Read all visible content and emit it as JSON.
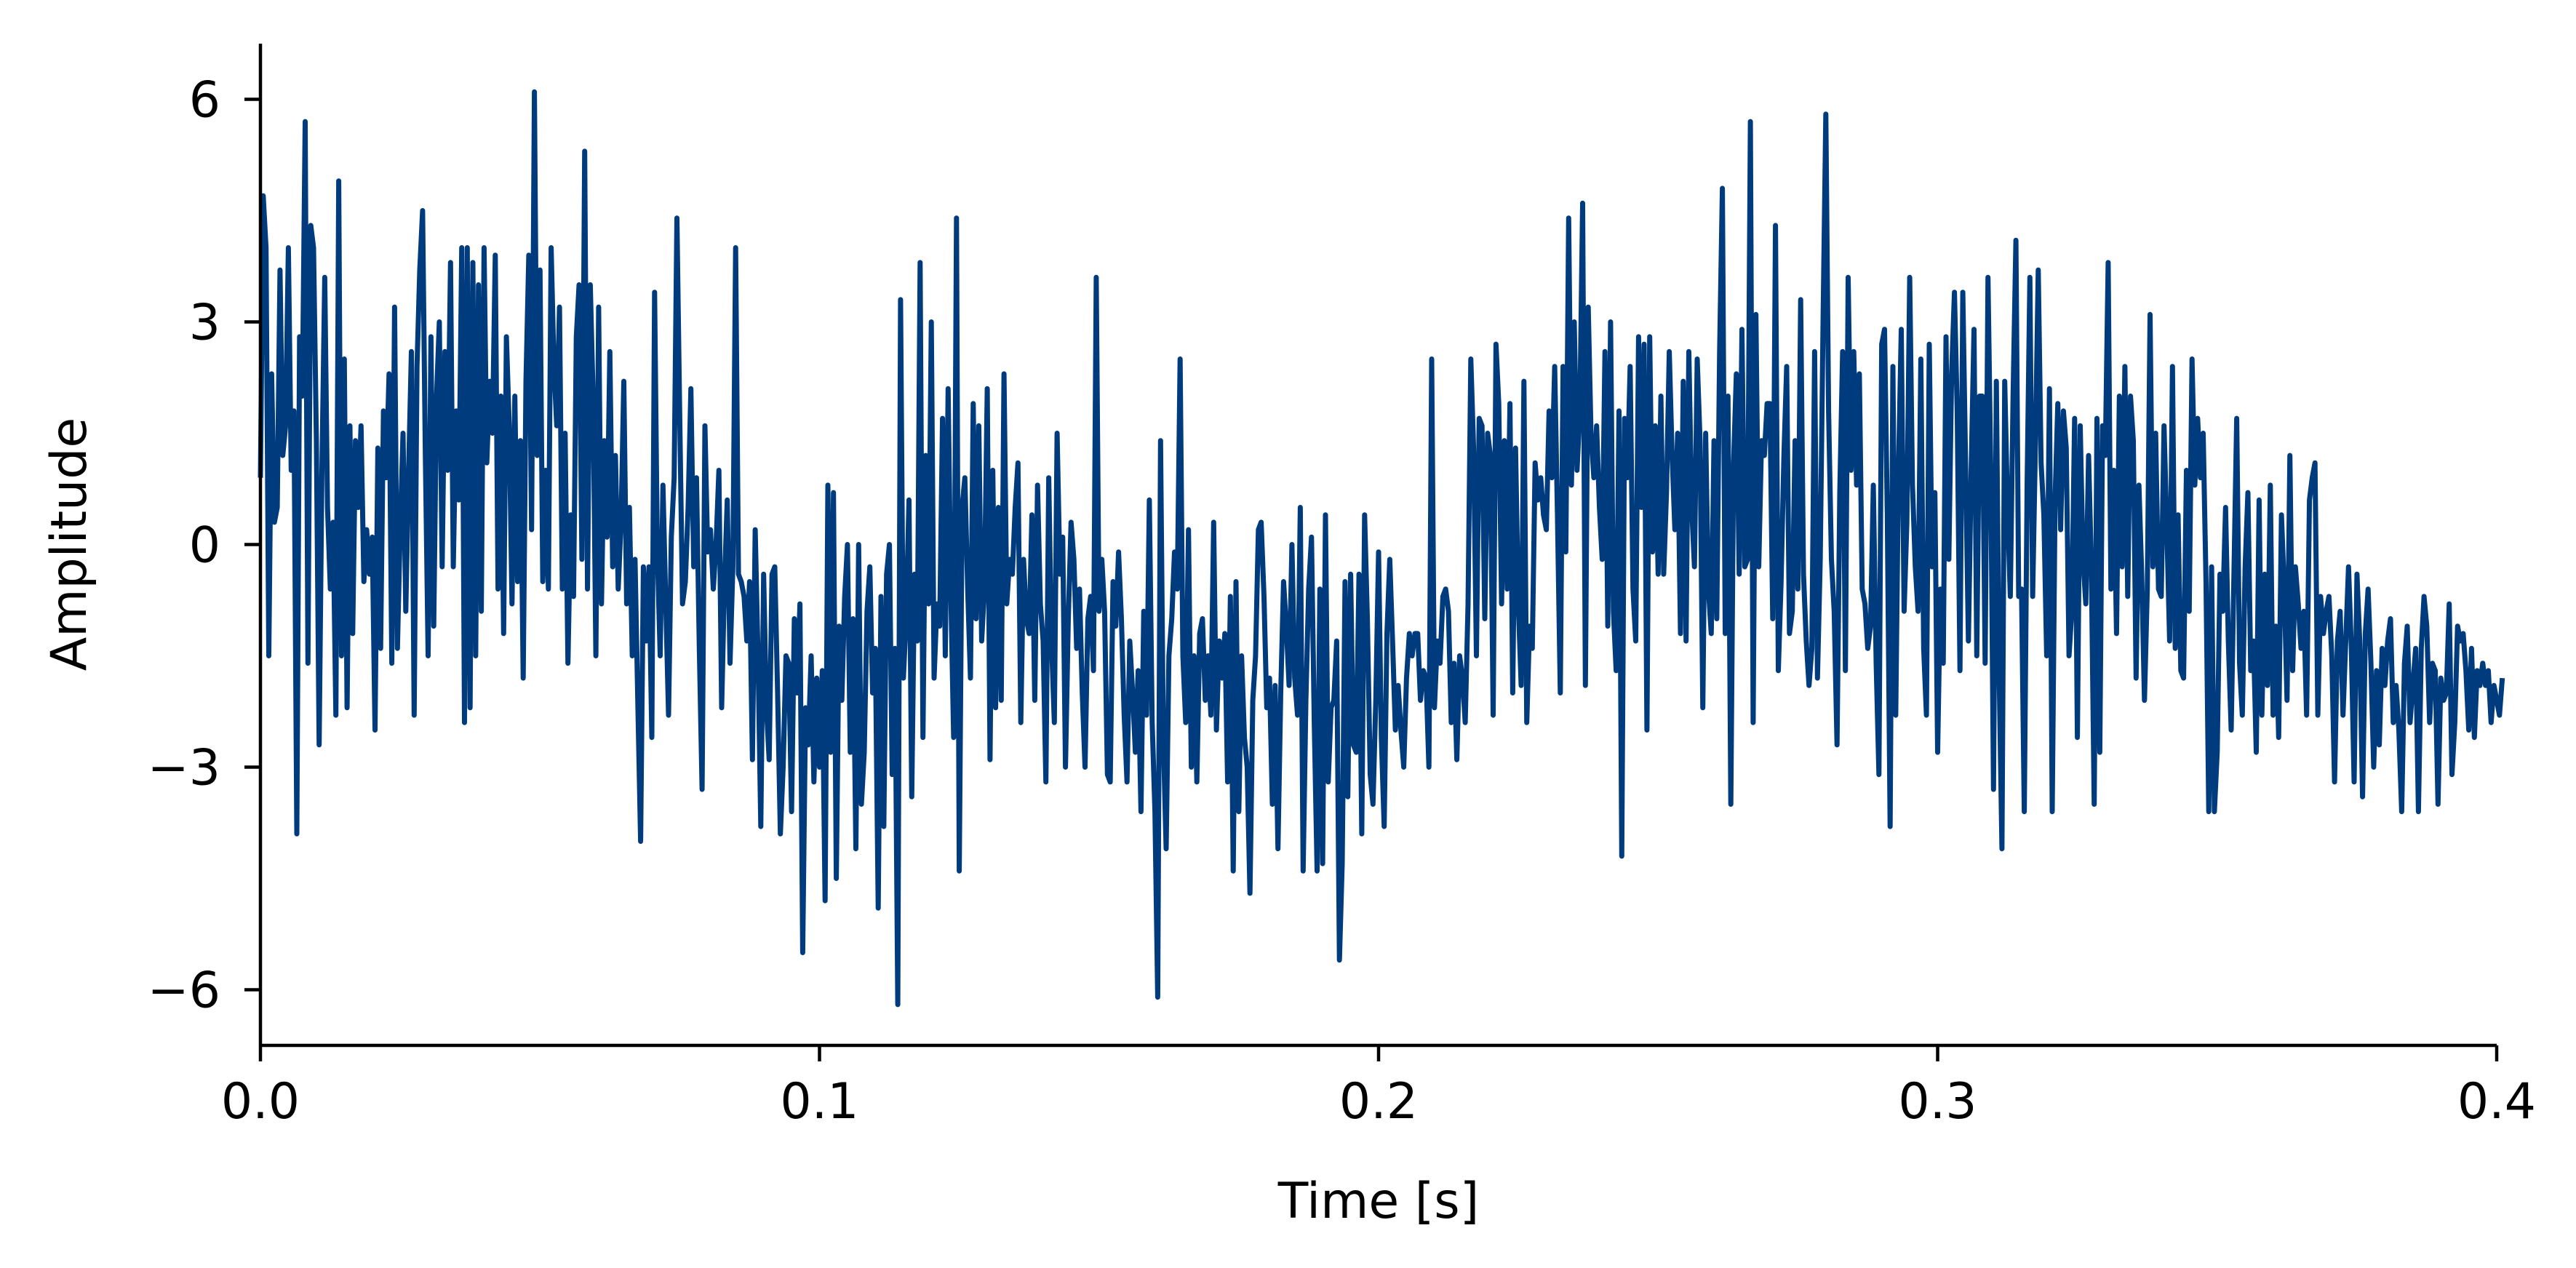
{
  "chart_data": {
    "type": "line",
    "title": "",
    "xlabel": "Time [s]",
    "ylabel": "Amplitude",
    "xlim": [
      0,
      0.4
    ],
    "ylim": [
      -6.75,
      6.75
    ],
    "xticks": [
      0.0,
      0.1,
      0.2,
      0.3,
      0.4
    ],
    "xtick_labels": [
      "0.0",
      "0.1",
      "0.2",
      "0.3",
      "0.4"
    ],
    "yticks": [
      -6,
      -3,
      0,
      3,
      6
    ],
    "ytick_labels": [
      "−6",
      "−3",
      "0",
      "3",
      "6"
    ],
    "grid": false,
    "legend": "none",
    "colors": {
      "series": "#003c7d",
      "axes": "#000000"
    },
    "sampling": {
      "n": 800,
      "dt": 0.0005
    },
    "series": [
      {
        "color": "#003c7d",
        "x_start": 0.0,
        "x_step": 0.0005,
        "values": [
          0.9,
          4.7,
          4.0,
          -1.5,
          2.3,
          0.3,
          0.5,
          3.7,
          1.2,
          1.6,
          4.0,
          1.0,
          1.8,
          -3.9,
          2.8,
          2.0,
          5.7,
          -1.6,
          4.3,
          4.0,
          1.4,
          -2.7,
          1.0,
          3.6,
          0.5,
          -0.6,
          0.3,
          -2.3,
          4.9,
          -1.5,
          2.5,
          -2.2,
          1.6,
          -1.2,
          1.4,
          0.5,
          1.6,
          -0.5,
          0.2,
          -0.4,
          0.1,
          -2.5,
          1.3,
          -1.4,
          1.8,
          0.9,
          2.3,
          -1.6,
          3.2,
          -1.4,
          0.2,
          1.5,
          -0.9,
          1.0,
          2.6,
          -2.3,
          2.4,
          3.7,
          4.5,
          1.2,
          -1.5,
          2.8,
          -1.1,
          2.0,
          3.0,
          -0.3,
          2.6,
          1.0,
          3.8,
          -0.3,
          1.8,
          0.6,
          4.0,
          -2.4,
          4.0,
          -2.2,
          3.8,
          -1.5,
          3.5,
          -0.9,
          4.0,
          1.1,
          2.2,
          1.5,
          3.9,
          -0.6,
          2.0,
          -1.2,
          2.8,
          1.6,
          -0.8,
          2.0,
          -0.5,
          1.4,
          -1.8,
          2.2,
          3.9,
          0.2,
          6.1,
          1.2,
          3.7,
          -0.5,
          1.0,
          -0.6,
          4.0,
          2.4,
          1.6,
          3.2,
          -0.6,
          1.5,
          -1.6,
          0.4,
          -0.7,
          2.8,
          3.5,
          -0.2,
          5.3,
          -0.6,
          3.5,
          2.0,
          -1.5,
          3.2,
          -0.8,
          1.4,
          0.1,
          2.6,
          -0.3,
          1.2,
          -0.6,
          0.3,
          2.2,
          -0.8,
          0.5,
          -1.5,
          -0.2,
          -2.1,
          -4.0,
          -0.3,
          -1.3,
          -0.3,
          -2.6,
          3.4,
          -0.1,
          -1.5,
          0.8,
          -0.8,
          -2.3,
          0.1,
          0.9,
          4.4,
          1.7,
          -0.8,
          -0.5,
          0.5,
          2.1,
          -0.3,
          0.9,
          -1.4,
          -3.3,
          1.6,
          -0.1,
          0.2,
          -0.6,
          0.0,
          1.0,
          -2.2,
          -0.5,
          0.6,
          -1.6,
          -0.3,
          4.0,
          -0.4,
          -0.5,
          -0.7,
          -1.3,
          -0.5,
          -2.9,
          0.2,
          -1.5,
          -3.8,
          -0.4,
          -2.2,
          -2.9,
          -0.4,
          -0.3,
          -2.0,
          -3.9,
          -3.0,
          -1.5,
          -1.6,
          -3.6,
          -1.0,
          -2.0,
          -0.8,
          -5.5,
          -2.2,
          -2.7,
          -1.5,
          -3.2,
          -1.8,
          -3.0,
          -1.7,
          -4.8,
          0.8,
          -2.8,
          0.7,
          -4.5,
          -1.1,
          -2.1,
          -0.7,
          0.0,
          -2.8,
          -1.0,
          -4.1,
          0.0,
          -3.5,
          -2.8,
          -0.9,
          -0.3,
          -2.0,
          -1.4,
          -4.9,
          -0.7,
          -3.8,
          -0.4,
          0.0,
          -3.1,
          -1.4,
          -6.2,
          3.3,
          -1.8,
          -1.0,
          0.6,
          -3.4,
          -0.4,
          -1.3,
          3.8,
          -2.6,
          1.2,
          -0.8,
          3.0,
          -1.8,
          -0.8,
          -1.1,
          1.7,
          -1.5,
          2.1,
          -0.7,
          -2.6,
          4.4,
          -4.4,
          0.5,
          0.9,
          -0.6,
          -1.8,
          1.9,
          -1.0,
          1.6,
          -1.3,
          -0.6,
          2.1,
          -2.9,
          1.0,
          -2.2,
          0.5,
          -2.1,
          2.3,
          -0.8,
          -0.2,
          -0.4,
          0.5,
          1.1,
          -2.4,
          -0.2,
          -1.0,
          -1.2,
          0.4,
          -2.1,
          0.8,
          -0.8,
          -1.3,
          -3.2,
          0.9,
          -1.3,
          -2.4,
          1.5,
          -0.4,
          0.1,
          -3.0,
          -1.0,
          0.3,
          -0.2,
          -1.4,
          -0.6,
          -2.0,
          -3.0,
          -1.0,
          -0.7,
          -1.7,
          3.6,
          -0.9,
          -0.2,
          -0.9,
          -3.1,
          -3.2,
          -0.5,
          -1.1,
          -0.1,
          -1.0,
          -2.3,
          -3.2,
          -1.3,
          -2.0,
          -2.8,
          -1.7,
          -3.6,
          -0.9,
          -2.3,
          0.6,
          -2.4,
          -3.6,
          -6.1,
          1.4,
          -2.6,
          -4.1,
          -1.5,
          -1.0,
          -0.1,
          -0.6,
          2.5,
          -1.5,
          -2.4,
          0.2,
          -3.0,
          -1.5,
          -3.2,
          -1.2,
          -1.0,
          -2.1,
          -1.5,
          -2.3,
          0.3,
          -2.5,
          -1.3,
          -1.8,
          -1.2,
          -3.2,
          -0.7,
          -4.4,
          -0.5,
          -3.6,
          -1.5,
          -2.6,
          -3.0,
          -4.7,
          -2.1,
          -1.5,
          0.2,
          0.3,
          -0.7,
          -2.2,
          -1.8,
          -3.5,
          -1.9,
          -4.1,
          -2.0,
          -0.5,
          -1.1,
          -1.9,
          0.0,
          -1.8,
          -2.3,
          0.5,
          -4.4,
          -2.1,
          -0.6,
          0.1,
          -2.4,
          -4.4,
          -0.6,
          -4.3,
          0.4,
          -3.2,
          -2.2,
          -2.1,
          -1.3,
          -5.6,
          -4.3,
          -0.5,
          -3.4,
          -0.4,
          -2.7,
          -2.8,
          -0.4,
          -3.9,
          0.4,
          -1.0,
          -3.1,
          -3.5,
          -2.1,
          -0.1,
          -2.6,
          -3.8,
          -1.2,
          -0.2,
          -1.3,
          -2.5,
          -1.9,
          -2.5,
          -3.0,
          -1.8,
          -1.2,
          -1.5,
          -1.2,
          -1.2,
          -2.1,
          -1.7,
          -1.8,
          -3.0,
          2.5,
          -2.2,
          -1.3,
          -1.6,
          -0.7,
          -0.6,
          -0.9,
          -2.4,
          -1.6,
          -2.9,
          -1.5,
          -1.8,
          -2.4,
          -0.8,
          2.5,
          1.3,
          -1.5,
          1.7,
          1.6,
          -1.0,
          1.5,
          1.2,
          -2.3,
          2.7,
          1.9,
          -0.8,
          1.4,
          -0.6,
          1.9,
          -2.0,
          1.3,
          -0.8,
          -1.9,
          2.2,
          -2.4,
          -1.1,
          -1.4,
          1.1,
          0.6,
          0.9,
          0.4,
          0.2,
          1.8,
          0.9,
          2.4,
          0.4,
          -2.0,
          2.4,
          -0.1,
          4.4,
          0.8,
          3.0,
          1.0,
          1.8,
          4.6,
          -1.9,
          3.2,
          1.5,
          0.9,
          1.6,
          0.5,
          -0.2,
          2.6,
          -1.1,
          3.0,
          -0.9,
          -1.7,
          1.8,
          -4.2,
          1.7,
          0.9,
          2.4,
          -0.6,
          -1.3,
          2.8,
          0.5,
          2.7,
          -2.5,
          2.8,
          -0.1,
          1.6,
          -0.4,
          2.0,
          -0.4,
          0.7,
          2.6,
          1.2,
          0.2,
          1.5,
          -1.2,
          2.2,
          -1.3,
          2.6,
          0.5,
          -0.3,
          2.5,
          1.4,
          -2.2,
          1.5,
          -0.6,
          -1.2,
          1.4,
          -1.0,
          2.6,
          4.8,
          -1.2,
          2.0,
          -3.5,
          1.1,
          2.3,
          -0.4,
          2.9,
          -0.3,
          -0.2,
          5.7,
          -2.4,
          3.1,
          -0.3,
          1.4,
          1.2,
          1.9,
          1.9,
          -1.0,
          4.3,
          -1.7,
          -0.5,
          1.2,
          2.4,
          -1.2,
          -0.9,
          1.4,
          -0.6,
          3.3,
          -0.4,
          -1.3,
          -1.9,
          -1.4,
          2.6,
          -1.8,
          -0.2,
          3.0,
          5.8,
          1.8,
          -0.2,
          -0.9,
          -2.7,
          0.7,
          2.6,
          -1.7,
          3.6,
          1.0,
          2.6,
          0.8,
          2.3,
          -0.6,
          -0.8,
          -1.4,
          -1.1,
          0.8,
          -1.6,
          -3.1,
          2.7,
          2.9,
          0.4,
          -3.8,
          2.4,
          -2.3,
          1.0,
          2.9,
          -0.9,
          0.3,
          3.6,
          0.8,
          -0.3,
          -0.9,
          2.5,
          -1.4,
          -2.3,
          2.7,
          -0.3,
          0.7,
          -2.8,
          -0.6,
          -1.6,
          2.8,
          -0.2,
          2.3,
          3.4,
          1.8,
          -1.7,
          3.4,
          1.1,
          -1.3,
          1.0,
          2.9,
          -1.5,
          2.0,
          2.0,
          -1.6,
          3.6,
          1.0,
          -3.3,
          2.2,
          -1.7,
          -4.1,
          2.2,
          0.5,
          -0.7,
          2.0,
          4.1,
          -0.7,
          -0.6,
          -3.6,
          0.8,
          3.6,
          -0.7,
          1.4,
          3.7,
          1.1,
          0.4,
          -1.5,
          2.1,
          -3.6,
          0.6,
          1.9,
          0.2,
          1.8,
          1.3,
          -1.5,
          -0.9,
          1.7,
          -2.6,
          1.6,
          -0.2,
          -0.8,
          1.2,
          -0.3,
          -3.5,
          1.7,
          -2.8,
          1.6,
          1.2,
          3.8,
          -0.6,
          1.0,
          -1.2,
          2.0,
          -0.3,
          2.4,
          -0.7,
          2.0,
          1.4,
          -1.8,
          0.8,
          -0.4,
          -2.1,
          -0.6,
          3.1,
          -0.3,
          1.5,
          -0.6,
          -0.7,
          1.6,
          0.2,
          -1.3,
          2.4,
          -1.4,
          0.4,
          -1.7,
          -1.8,
          1.0,
          -0.9,
          2.5,
          0.8,
          1.7,
          0.9,
          1.5,
          -0.5,
          -3.6,
          -0.3,
          -3.6,
          -2.8,
          -0.4,
          -0.9,
          0.5,
          -1.3,
          -2.5,
          -0.4,
          1.7,
          -1.6,
          -2.3,
          -0.3,
          0.7,
          -1.7,
          -1.3,
          -2.8,
          0.6,
          -2.3,
          -0.4,
          -1.9,
          0.8,
          -2.3,
          -1.1,
          -2.6,
          0.4,
          -0.6,
          -2.1,
          1.2,
          -1.7,
          -0.3,
          -0.8,
          -1.4,
          -0.9,
          -2.3,
          0.6,
          0.9,
          1.1,
          -2.3,
          -0.7,
          -1.2,
          -0.9,
          -0.7,
          -1.5,
          -3.2,
          -1.3,
          -0.9,
          -2.3,
          -1.3,
          -0.3,
          -1.4,
          -3.2,
          -0.4,
          -1.3,
          -3.4,
          -1.2,
          -0.6,
          -1.6,
          -3.0,
          -1.7,
          -2.7,
          -1.4,
          -1.9,
          -1.3,
          -1.0,
          -2.4,
          -1.9,
          -2.5,
          -3.6,
          -1.6,
          -1.1,
          -2.4,
          -1.9,
          -1.4,
          -3.6,
          -1.4,
          -0.7,
          -1.1,
          -2.4,
          -1.6,
          -1.7,
          -3.5,
          -1.8,
          -2.1,
          -2.0,
          -0.8,
          -3.1,
          -2.4,
          -1.1,
          -1.3,
          -1.2,
          -1.7,
          -2.5,
          -1.4,
          -2.6,
          -1.7,
          -1.9,
          -1.6,
          -1.9,
          -1.7,
          -2.4,
          -1.9,
          -2.1,
          -2.3,
          -1.8
        ]
      }
    ]
  }
}
